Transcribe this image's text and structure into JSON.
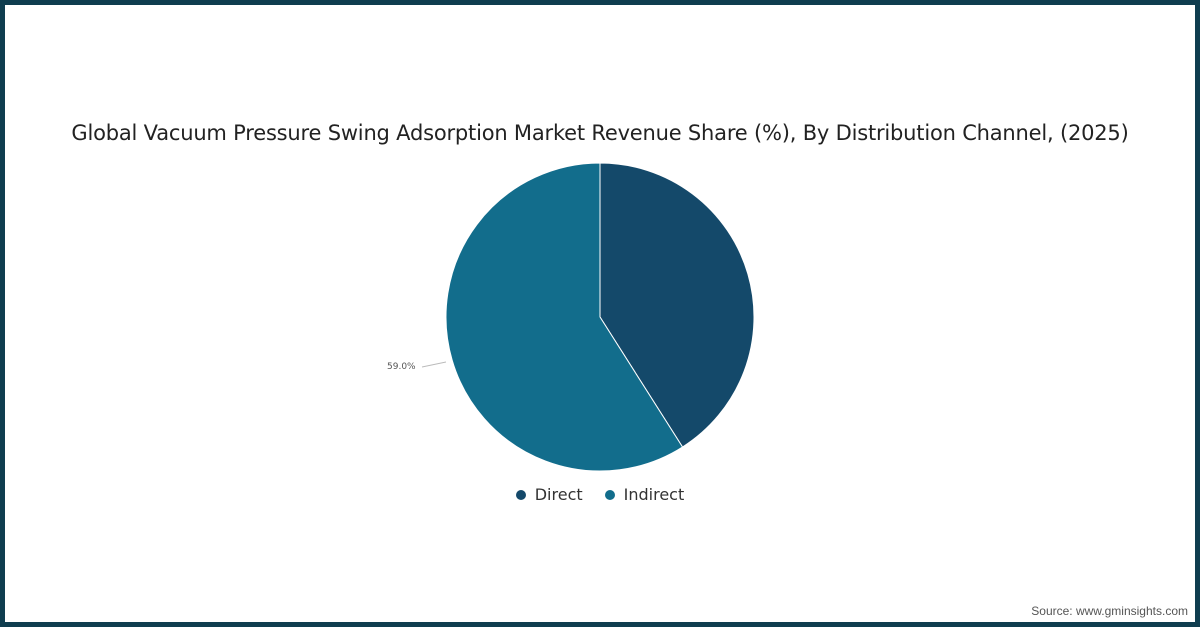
{
  "chart_data": {
    "type": "pie",
    "title": "Global Vacuum Pressure Swing Adsorption Market Revenue Share (%), By Distribution Channel, (2025)",
    "categories": [
      "Direct",
      "Indirect"
    ],
    "values": [
      41.0,
      59.0
    ],
    "colors": [
      "#14496a",
      "#126d8c"
    ],
    "data_labels": [
      "",
      "59.0%"
    ],
    "legend_position": "bottom"
  },
  "legend": {
    "items": [
      {
        "label": "Direct",
        "color": "#14496a"
      },
      {
        "label": "Indirect",
        "color": "#126d8c"
      }
    ]
  },
  "source": "Source: www.gminsights.com"
}
